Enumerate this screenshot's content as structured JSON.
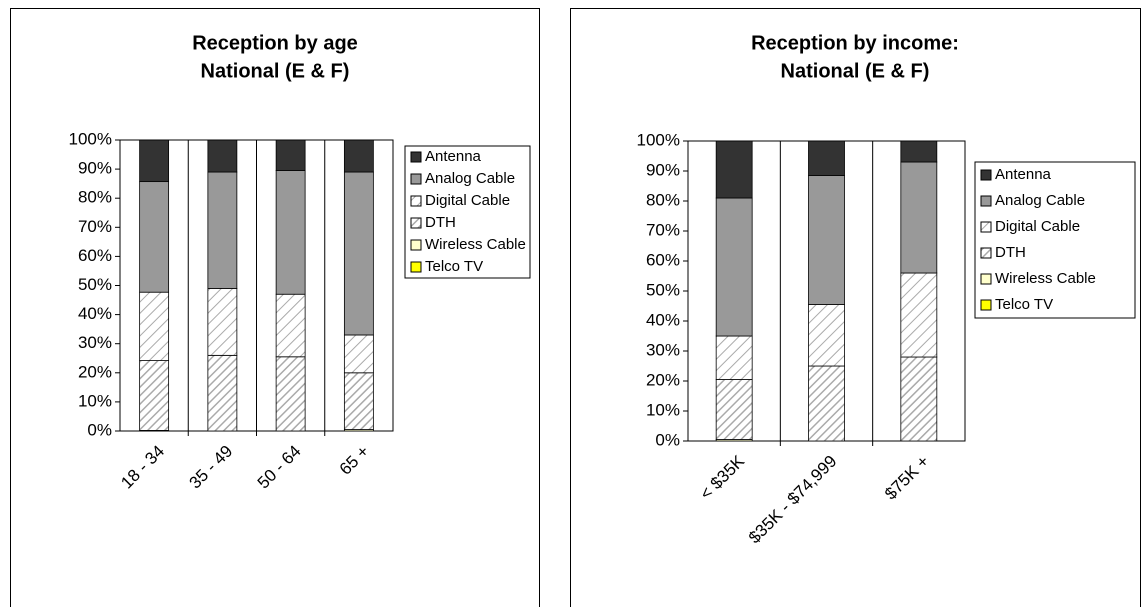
{
  "chart_data": [
    {
      "type": "stacked_bar",
      "title": "Reception by age",
      "subtitle": "National (E & F)",
      "categories": [
        "18 - 34",
        "35 - 49",
        "50 - 64",
        "65 +"
      ],
      "series": [
        {
          "name": "Antenna",
          "color": "#333333",
          "values": [
            14.3,
            11,
            10.5,
            11
          ]
        },
        {
          "name": "Analog Cable",
          "color": "#999999",
          "values": [
            38,
            40,
            42.5,
            56
          ]
        },
        {
          "name": "Digital Cable",
          "color": "#ffffff",
          "pattern": "hatch-wide",
          "values": [
            23.5,
            23,
            21.5,
            13
          ]
        },
        {
          "name": "DTH",
          "color": "#ffffff",
          "pattern": "hatch-dense",
          "values": [
            24,
            26,
            25.5,
            19.5
          ]
        },
        {
          "name": "Wireless Cable",
          "color": "#ffffcc",
          "values": [
            0.2,
            0,
            0,
            0.5
          ]
        },
        {
          "name": "Telco TV",
          "color": "#ffff00",
          "values": [
            0,
            0,
            0,
            0
          ]
        }
      ],
      "ylim": [
        0,
        100
      ],
      "yticks": [
        {
          "value": 0,
          "label": "0%"
        },
        {
          "value": 10,
          "label": "10%"
        },
        {
          "value": 20,
          "label": "20%"
        },
        {
          "value": 30,
          "label": "30%"
        },
        {
          "value": 40,
          "label": "40%"
        },
        {
          "value": 50,
          "label": "50%"
        },
        {
          "value": 60,
          "label": "60%"
        },
        {
          "value": 70,
          "label": "70%"
        },
        {
          "value": 80,
          "label": "80%"
        },
        {
          "value": 90,
          "label": "90%"
        },
        {
          "value": 100,
          "label": "100%"
        }
      ],
      "legend": "right"
    },
    {
      "type": "stacked_bar",
      "title": "Reception by income:",
      "subtitle": "National (E & F)",
      "categories": [
        "< $35K",
        "$35K - $74,999",
        "$75K +"
      ],
      "series": [
        {
          "name": "Antenna",
          "color": "#333333",
          "values": [
            19,
            11.5,
            7
          ]
        },
        {
          "name": "Analog Cable",
          "color": "#999999",
          "values": [
            46,
            43,
            37
          ]
        },
        {
          "name": "Digital Cable",
          "color": "#ffffff",
          "pattern": "hatch-wide",
          "values": [
            14.5,
            20.5,
            28
          ]
        },
        {
          "name": "DTH",
          "color": "#ffffff",
          "pattern": "hatch-dense",
          "values": [
            20,
            25,
            28
          ]
        },
        {
          "name": "Wireless Cable",
          "color": "#ffffcc",
          "values": [
            0.5,
            0,
            0
          ]
        },
        {
          "name": "Telco TV",
          "color": "#ffff00",
          "values": [
            0,
            0,
            0
          ]
        }
      ],
      "ylim": [
        0,
        100
      ],
      "yticks": [
        {
          "value": 0,
          "label": "0%"
        },
        {
          "value": 10,
          "label": "10%"
        },
        {
          "value": 20,
          "label": "20%"
        },
        {
          "value": 30,
          "label": "30%"
        },
        {
          "value": 40,
          "label": "40%"
        },
        {
          "value": 50,
          "label": "50%"
        },
        {
          "value": 60,
          "label": "60%"
        },
        {
          "value": 70,
          "label": "70%"
        },
        {
          "value": 80,
          "label": "80%"
        },
        {
          "value": 90,
          "label": "90%"
        },
        {
          "value": 100,
          "label": "100%"
        }
      ],
      "legend": "right"
    }
  ]
}
